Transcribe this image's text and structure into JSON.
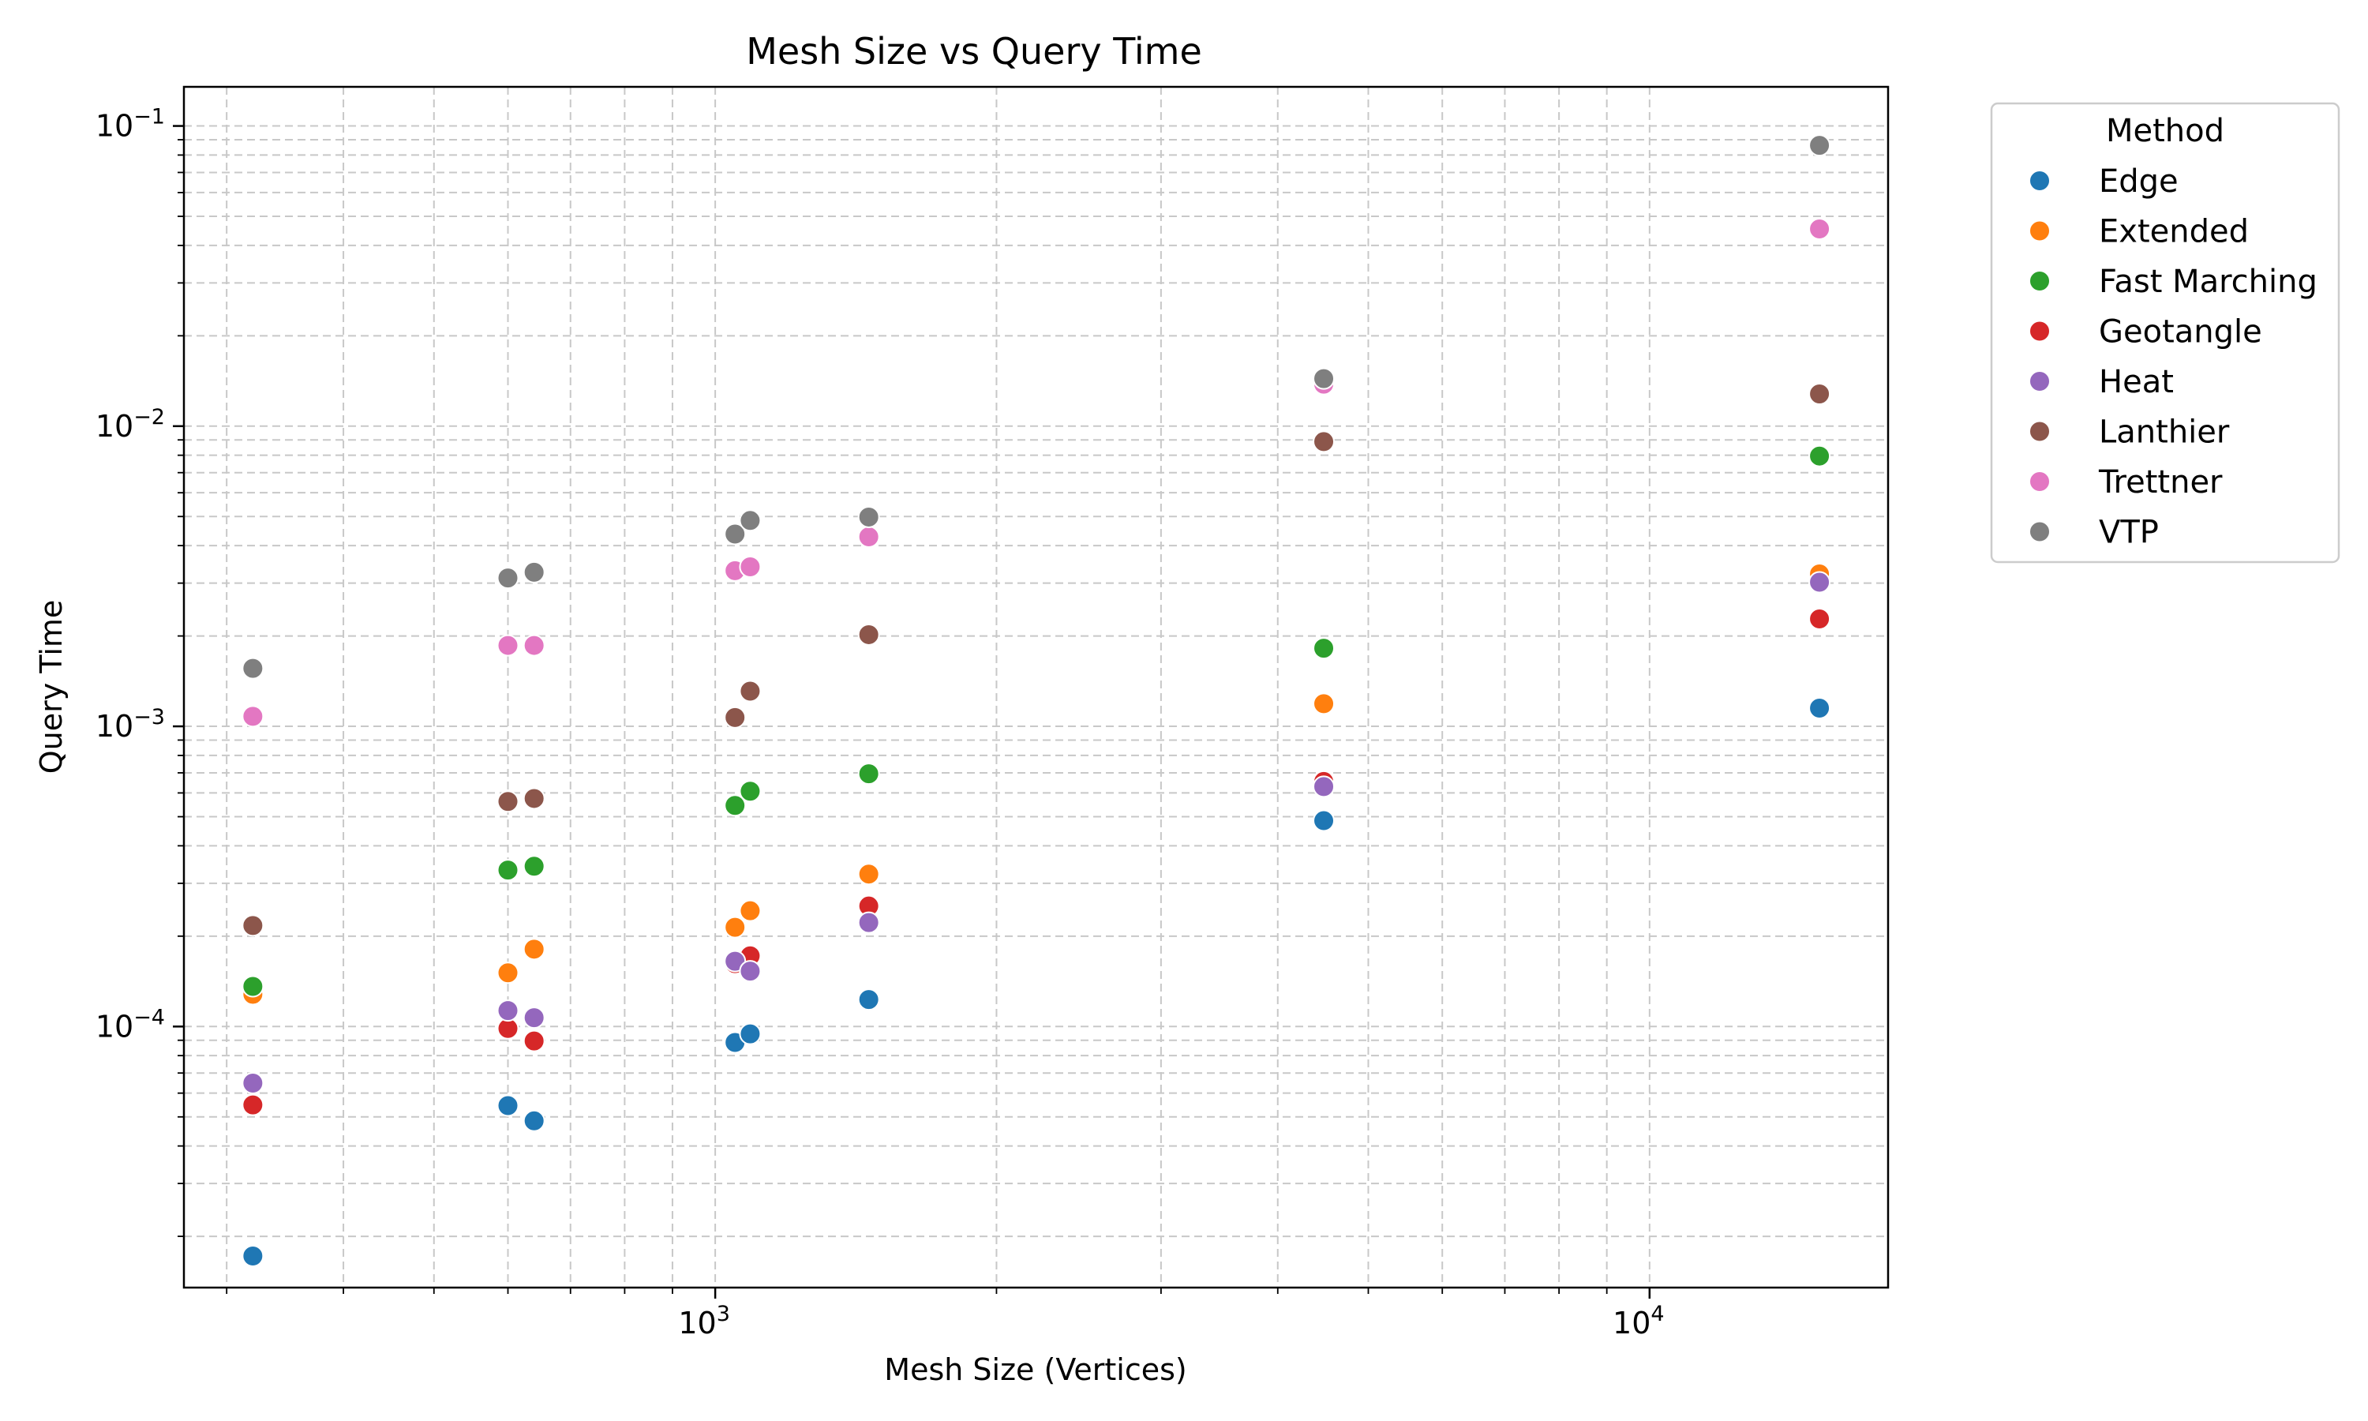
{
  "chart_data": {
    "type": "scatter",
    "title": "Mesh Size vs Query Time",
    "xlabel": "Mesh Size (Vertices)",
    "ylabel": "Query Time",
    "xscale": "log",
    "yscale": "log",
    "xlim": [
      270,
      18000
    ],
    "ylim": [
      1.35e-05,
      0.135
    ],
    "grid": "on, major and minor, dashed",
    "x_ticks": [
      {
        "value": 1000,
        "base": "10",
        "exp": "3"
      },
      {
        "value": 10000,
        "base": "10",
        "exp": "4"
      }
    ],
    "y_ticks": [
      {
        "value": 0.0001,
        "base": "10",
        "exp": "−4"
      },
      {
        "value": 0.001,
        "base": "10",
        "exp": "−3"
      },
      {
        "value": 0.01,
        "base": "10",
        "exp": "−2"
      },
      {
        "value": 0.1,
        "base": "10",
        "exp": "−1"
      }
    ],
    "legend": {
      "title": "Method",
      "placement": "outside upper right"
    },
    "series": [
      {
        "name": "Edge",
        "color": "#1f77b4",
        "points": [
          [
            320,
            1.72e-05
          ],
          [
            600,
            5.45e-05
          ],
          [
            640,
            4.85e-05
          ],
          [
            1050,
            8.85e-05
          ],
          [
            1090,
            9.45e-05
          ],
          [
            1460,
            0.000123
          ],
          [
            4480,
            0.000485
          ],
          [
            15200,
            0.00115
          ]
        ]
      },
      {
        "name": "Extended",
        "color": "#ff7f0e",
        "points": [
          [
            320,
            0.000128
          ],
          [
            600,
            0.000151
          ],
          [
            640,
            0.000181
          ],
          [
            1050,
            0.000214
          ],
          [
            1090,
            0.000243
          ],
          [
            1460,
            0.000322
          ],
          [
            4480,
            0.00119
          ],
          [
            15200,
            0.00322
          ]
        ]
      },
      {
        "name": "Fast Marching",
        "color": "#2ca02c",
        "points": [
          [
            320,
            0.000136
          ],
          [
            600,
            0.000332
          ],
          [
            640,
            0.000342
          ],
          [
            1050,
            0.000545
          ],
          [
            1090,
            0.000608
          ],
          [
            1460,
            0.000695
          ],
          [
            4480,
            0.00182
          ],
          [
            15200,
            0.00795
          ]
        ]
      },
      {
        "name": "Geotangle",
        "color": "#d62728",
        "points": [
          [
            320,
            5.48e-05
          ],
          [
            600,
            9.85e-05
          ],
          [
            640,
            8.95e-05
          ],
          [
            1050,
            0.000162
          ],
          [
            1090,
            0.000172
          ],
          [
            1460,
            0.000252
          ],
          [
            4480,
            0.000655
          ],
          [
            15200,
            0.00228
          ]
        ]
      },
      {
        "name": "Heat",
        "color": "#9467bd",
        "points": [
          [
            320,
            6.48e-05
          ],
          [
            600,
            0.000113
          ],
          [
            640,
            0.000107
          ],
          [
            1050,
            0.000165
          ],
          [
            1090,
            0.000153
          ],
          [
            1460,
            0.000222
          ],
          [
            4480,
            0.00063
          ],
          [
            15200,
            0.00302
          ]
        ]
      },
      {
        "name": "Lanthier",
        "color": "#8c564b",
        "points": [
          [
            320,
            0.000217
          ],
          [
            600,
            0.000562
          ],
          [
            640,
            0.000575
          ],
          [
            1050,
            0.00107
          ],
          [
            1090,
            0.00131
          ],
          [
            1460,
            0.00202
          ],
          [
            4480,
            0.00888
          ],
          [
            15200,
            0.0128
          ]
        ]
      },
      {
        "name": "Trettner",
        "color": "#e377c2",
        "points": [
          [
            320,
            0.00108
          ],
          [
            600,
            0.00186
          ],
          [
            640,
            0.00186
          ],
          [
            1050,
            0.0033
          ],
          [
            1090,
            0.0034
          ],
          [
            1460,
            0.00428
          ],
          [
            4480,
            0.0138
          ],
          [
            15200,
            0.0454
          ]
        ]
      },
      {
        "name": "VTP",
        "color": "#7f7f7f",
        "points": [
          [
            320,
            0.00156
          ],
          [
            600,
            0.00312
          ],
          [
            640,
            0.00326
          ],
          [
            1050,
            0.00437
          ],
          [
            1090,
            0.00485
          ],
          [
            1460,
            0.00498
          ],
          [
            4480,
            0.0144
          ],
          [
            15200,
            0.0862
          ]
        ]
      }
    ]
  }
}
